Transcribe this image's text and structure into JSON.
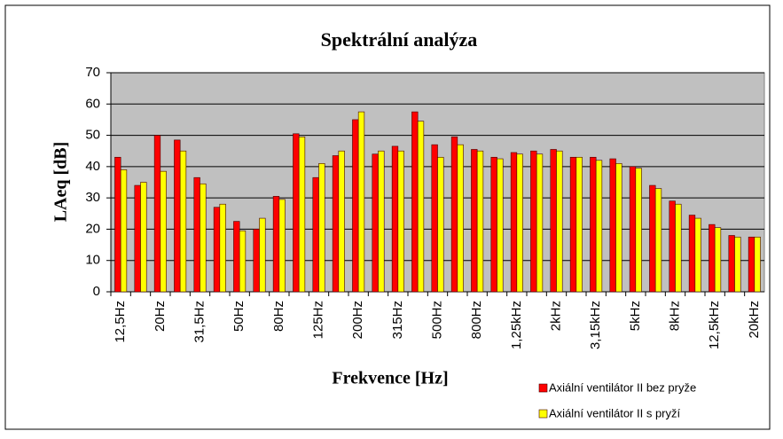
{
  "chart_data": {
    "type": "bar",
    "title": "Spektrální analýza",
    "y_label": "LAeq [dB]",
    "x_label": "Frekvence [Hz]",
    "categories": [
      "12,5Hz",
      null,
      "20Hz",
      null,
      "31,5Hz",
      null,
      "50Hz",
      null,
      "80Hz",
      null,
      "125Hz",
      null,
      "200Hz",
      null,
      "315Hz",
      null,
      "500Hz",
      null,
      "800Hz",
      null,
      "1,25kHz",
      null,
      "2kHz",
      null,
      "3,15kHz",
      null,
      "5kHz",
      null,
      "8kHz",
      null,
      "12,5kHz",
      null,
      "20kHz"
    ],
    "series": [
      {
        "name": "Axiální ventilátor II bez pryže",
        "color": "#ff0000",
        "values": [
          43,
          34,
          50,
          48.5,
          36.5,
          27,
          22.5,
          20,
          30.5,
          50.5,
          36.5,
          43.5,
          55,
          44,
          46.5,
          57.5,
          47,
          49.5,
          45.5,
          43,
          44.5,
          45,
          45.5,
          43,
          43,
          42.5,
          40,
          34,
          29,
          24.5,
          21.5,
          18,
          17.5
        ]
      },
      {
        "name": "Axiální ventilátor II s pryží",
        "color": "#ffff00",
        "values": [
          39,
          35,
          38.5,
          45,
          34.5,
          28,
          19.5,
          23.5,
          29.5,
          49.5,
          41,
          45,
          57.5,
          45,
          45,
          54.5,
          43,
          47,
          45,
          42.5,
          44,
          44,
          45,
          43,
          42,
          41,
          39.5,
          33,
          28,
          23.5,
          20.5,
          17.5,
          17.5
        ]
      }
    ],
    "ylim": [
      0,
      70
    ],
    "yticks": [
      0,
      10,
      20,
      30,
      40,
      50,
      60,
      70
    ],
    "grid": true,
    "plot_background": "#c0c0c0",
    "legend": "bottom-right"
  }
}
